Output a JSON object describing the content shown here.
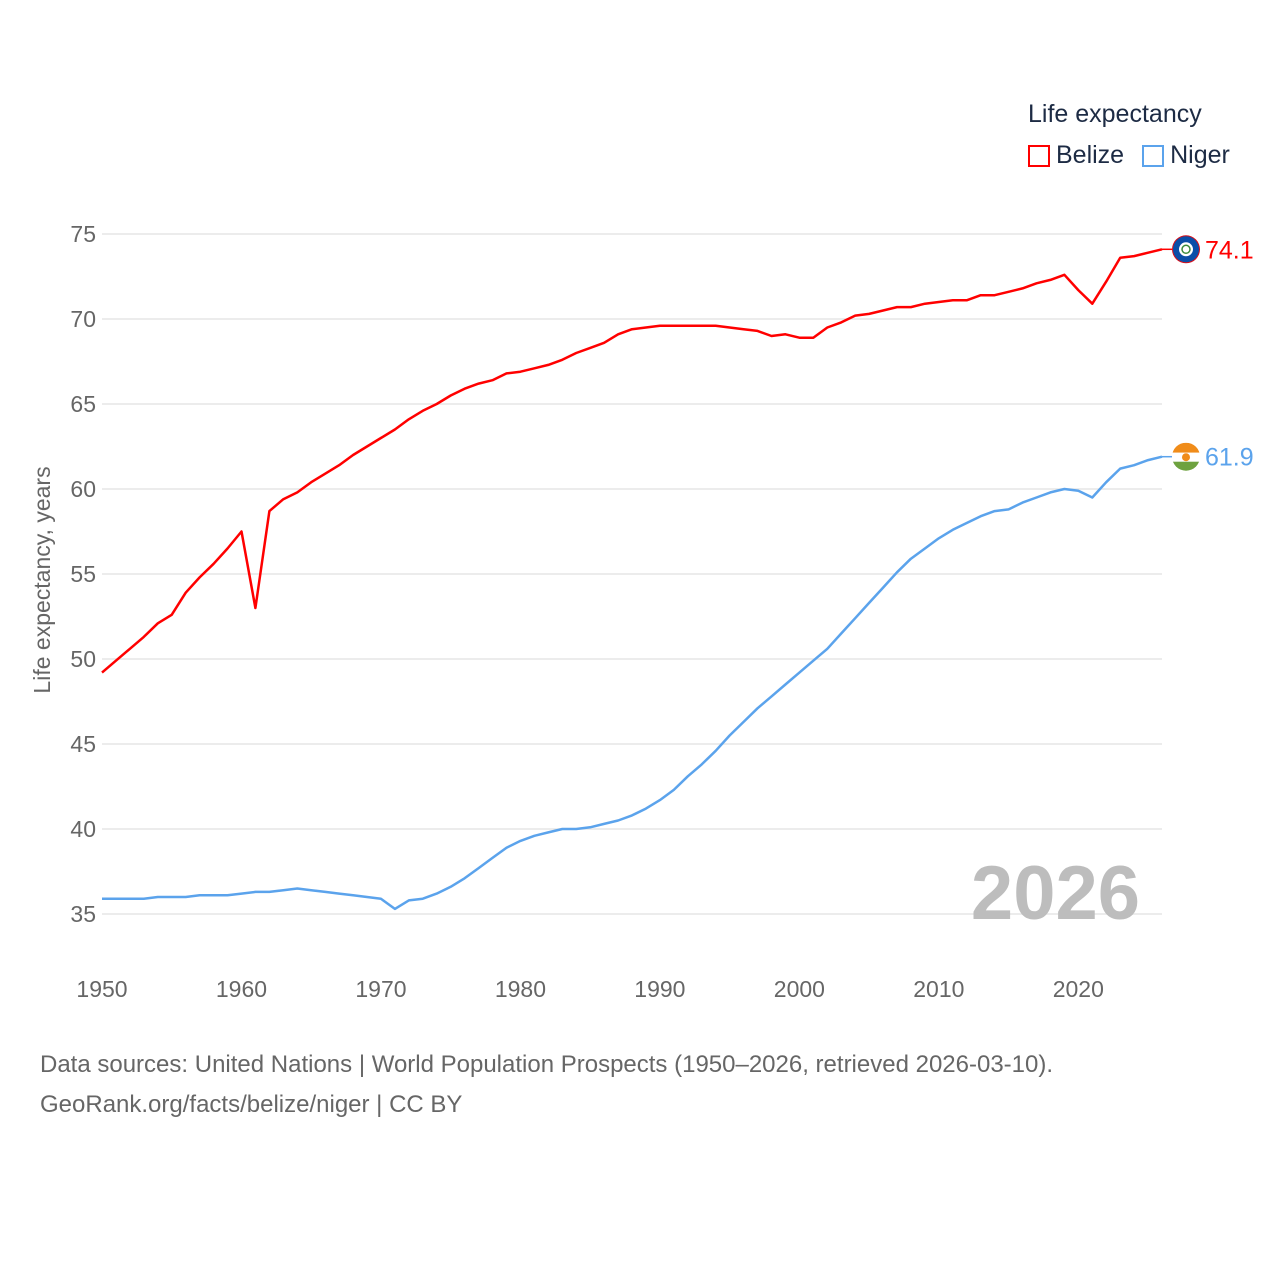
{
  "chart_data": {
    "type": "line",
    "title": "Life expectancy",
    "xlabel": "",
    "ylabel": "Life expectancy, years",
    "xlim": [
      1950,
      2026
    ],
    "ylim": [
      35,
      75
    ],
    "xticks": [
      1950,
      1960,
      1970,
      1980,
      1990,
      2000,
      2010,
      2020
    ],
    "yticks": [
      35,
      40,
      45,
      50,
      55,
      60,
      65,
      70,
      75
    ],
    "grid": true,
    "legend_position": "top-right",
    "x": [
      1950,
      1951,
      1952,
      1953,
      1954,
      1955,
      1956,
      1957,
      1958,
      1959,
      1960,
      1961,
      1962,
      1963,
      1964,
      1965,
      1966,
      1967,
      1968,
      1969,
      1970,
      1971,
      1972,
      1973,
      1974,
      1975,
      1976,
      1977,
      1978,
      1979,
      1980,
      1981,
      1982,
      1983,
      1984,
      1985,
      1986,
      1987,
      1988,
      1989,
      1990,
      1991,
      1992,
      1993,
      1994,
      1995,
      1996,
      1997,
      1998,
      1999,
      2000,
      2001,
      2002,
      2003,
      2004,
      2005,
      2006,
      2007,
      2008,
      2009,
      2010,
      2011,
      2012,
      2013,
      2014,
      2015,
      2016,
      2017,
      2018,
      2019,
      2020,
      2021,
      2022,
      2023,
      2024,
      2025,
      2026
    ],
    "series": [
      {
        "name": "Belize",
        "color": "#ff0000",
        "end_label": "74.1",
        "values": [
          49.2,
          49.9,
          50.6,
          51.3,
          52.1,
          52.6,
          53.9,
          54.8,
          55.6,
          56.5,
          57.5,
          53.0,
          58.7,
          59.4,
          59.8,
          60.4,
          60.9,
          61.4,
          62.0,
          62.5,
          63.0,
          63.5,
          64.1,
          64.6,
          65.0,
          65.5,
          65.9,
          66.2,
          66.4,
          66.8,
          66.9,
          67.1,
          67.3,
          67.6,
          68.0,
          68.3,
          68.6,
          69.1,
          69.4,
          69.5,
          69.6,
          69.6,
          69.6,
          69.6,
          69.6,
          69.5,
          69.4,
          69.3,
          69.0,
          69.1,
          68.9,
          68.9,
          69.5,
          69.8,
          70.2,
          70.3,
          70.5,
          70.7,
          70.7,
          70.9,
          71.0,
          71.1,
          71.1,
          71.4,
          71.4,
          71.6,
          71.8,
          72.1,
          72.3,
          72.6,
          71.7,
          70.9,
          72.2,
          73.6,
          73.7,
          73.9,
          74.1
        ]
      },
      {
        "name": "Niger",
        "color": "#5ba3ec",
        "end_label": "61.9",
        "values": [
          35.9,
          35.9,
          35.9,
          35.9,
          36.0,
          36.0,
          36.0,
          36.1,
          36.1,
          36.1,
          36.2,
          36.3,
          36.3,
          36.4,
          36.5,
          36.4,
          36.3,
          36.2,
          36.1,
          36.0,
          35.9,
          35.3,
          35.8,
          35.9,
          36.2,
          36.6,
          37.1,
          37.7,
          38.3,
          38.9,
          39.3,
          39.6,
          39.8,
          40.0,
          40.0,
          40.1,
          40.3,
          40.5,
          40.8,
          41.2,
          41.7,
          42.3,
          43.1,
          43.8,
          44.6,
          45.5,
          46.3,
          47.1,
          47.8,
          48.5,
          49.2,
          49.9,
          50.6,
          51.5,
          52.4,
          53.3,
          54.2,
          55.1,
          55.9,
          56.5,
          57.1,
          57.6,
          58.0,
          58.4,
          58.7,
          58.8,
          59.2,
          59.5,
          59.8,
          60.0,
          59.9,
          59.5,
          60.4,
          61.2,
          61.4,
          61.7,
          61.9
        ]
      }
    ]
  },
  "legend": {
    "title": "Life expectancy",
    "items": [
      "Belize",
      "Niger"
    ]
  },
  "year_watermark": "2026",
  "source": {
    "line1": "Data sources: United Nations | World Population Prospects (1950–2026, retrieved 2026-03-10).",
    "line2": "GeoRank.org/facts/belize/niger | CC BY"
  }
}
